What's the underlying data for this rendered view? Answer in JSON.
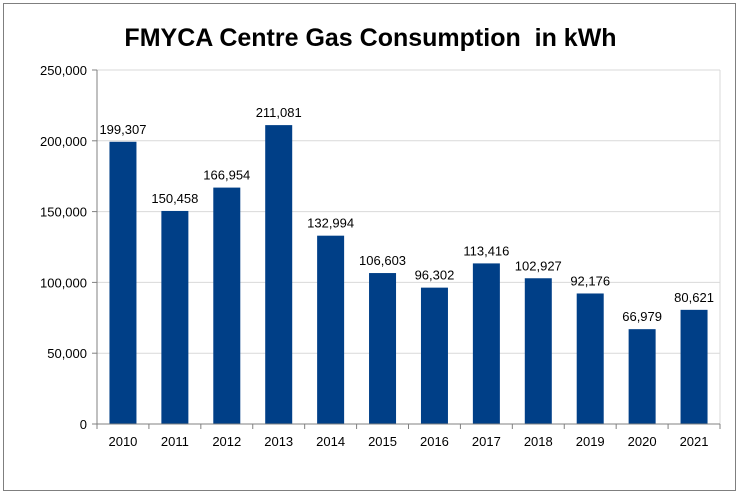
{
  "chart_data": {
    "type": "bar",
    "title": "FMYCA Centre Gas Consumption  in kWh",
    "xlabel": "",
    "ylabel": "",
    "categories": [
      "2010",
      "2011",
      "2012",
      "2013",
      "2014",
      "2015",
      "2016",
      "2017",
      "2018",
      "2019",
      "2020",
      "2021"
    ],
    "values": [
      199307,
      150458,
      166954,
      211081,
      132994,
      106603,
      96302,
      113416,
      102927,
      92176,
      66979,
      80621
    ],
    "data_labels": [
      "199,307",
      "150,458",
      "166,954",
      "211,081",
      "132,994",
      "106,603",
      "96,302",
      "113,416",
      "102,927",
      "92,176",
      "66,979",
      "80,621"
    ],
    "ylim": [
      0,
      250000
    ],
    "yticks": [
      0,
      50000,
      100000,
      150000,
      200000,
      250000
    ],
    "ytick_labels": [
      "0",
      "50,000",
      "100,000",
      "150,000",
      "200,000",
      "250,000"
    ],
    "grid": true,
    "legend": "none",
    "colors": {
      "bar": "#003f87",
      "grid": "#d9d9d9",
      "axis": "#808080"
    }
  }
}
